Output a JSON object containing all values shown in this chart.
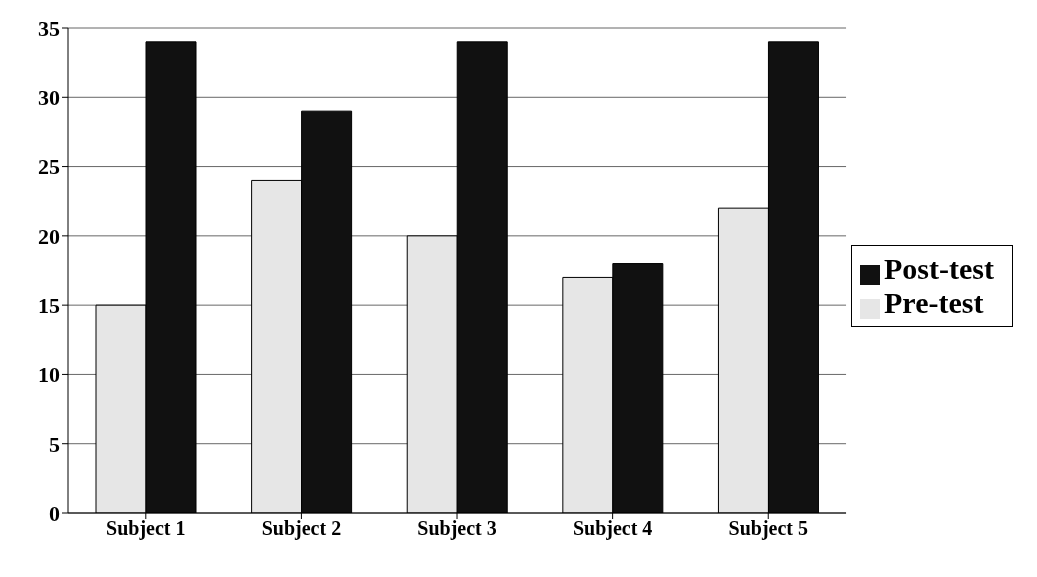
{
  "chart_data": {
    "type": "bar",
    "categories": [
      "Subject 1",
      "Subject 2",
      "Subject 3",
      "Subject 4",
      "Subject 5"
    ],
    "series": [
      {
        "name": "Pre-test",
        "color": "#e6e6e6",
        "values": [
          15,
          24,
          20,
          17,
          22
        ]
      },
      {
        "name": "Post-test",
        "color": "#111111",
        "values": [
          34,
          29,
          34,
          18,
          34
        ]
      }
    ],
    "ylim": [
      0,
      35
    ],
    "yticks": [
      0,
      5,
      10,
      15,
      20,
      25,
      30,
      35
    ],
    "grid": "y",
    "legend": "right"
  }
}
